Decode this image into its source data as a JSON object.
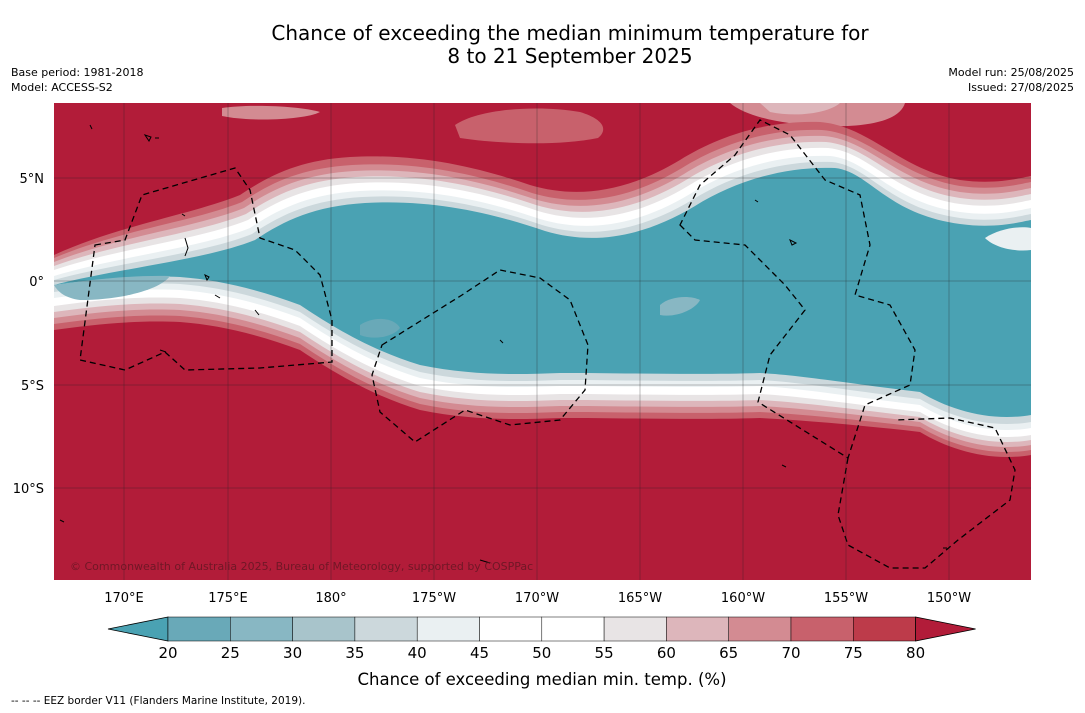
{
  "title": {
    "line1": "Chance of exceeding the median minimum temperature for",
    "line2": "8 to 21 September 2025"
  },
  "meta_left": {
    "base_period": "Base period: 1981-2018",
    "model": "Model: ACCESS-S2"
  },
  "meta_right": {
    "model_run": "Model run: 25/08/2025",
    "issued": "Issued: 27/08/2025"
  },
  "map": {
    "lat_labels": [
      "5°N",
      "0°",
      "5°S",
      "10°S"
    ],
    "lon_labels": [
      "170°E",
      "175°E",
      "180°",
      "175°W",
      "170°W",
      "165°W",
      "160°W",
      "155°W",
      "150°W"
    ],
    "copyright": "© Commonwealth of Australia 2025, Bureau of Meteorology, supported by COSPPac"
  },
  "colorbar": {
    "ticks": [
      "20",
      "25",
      "30",
      "35",
      "40",
      "45",
      "50",
      "55",
      "60",
      "65",
      "70",
      "75",
      "80"
    ],
    "label": "Chance of exceeding median min. temp. (%)",
    "colors": [
      "#4aa2b3",
      "#69a9b8",
      "#88b7c3",
      "#a8c4cb",
      "#ccd8dc",
      "#eaf0f2",
      "#ffffff",
      "#ffffff",
      "#e8e4e5",
      "#ddb6bb",
      "#d38b92",
      "#c8616c",
      "#bd3b4a",
      "#b21c39"
    ]
  },
  "footnote": "--  --  -- EEZ border V11 (Flanders Marine Institute, 2019)."
}
